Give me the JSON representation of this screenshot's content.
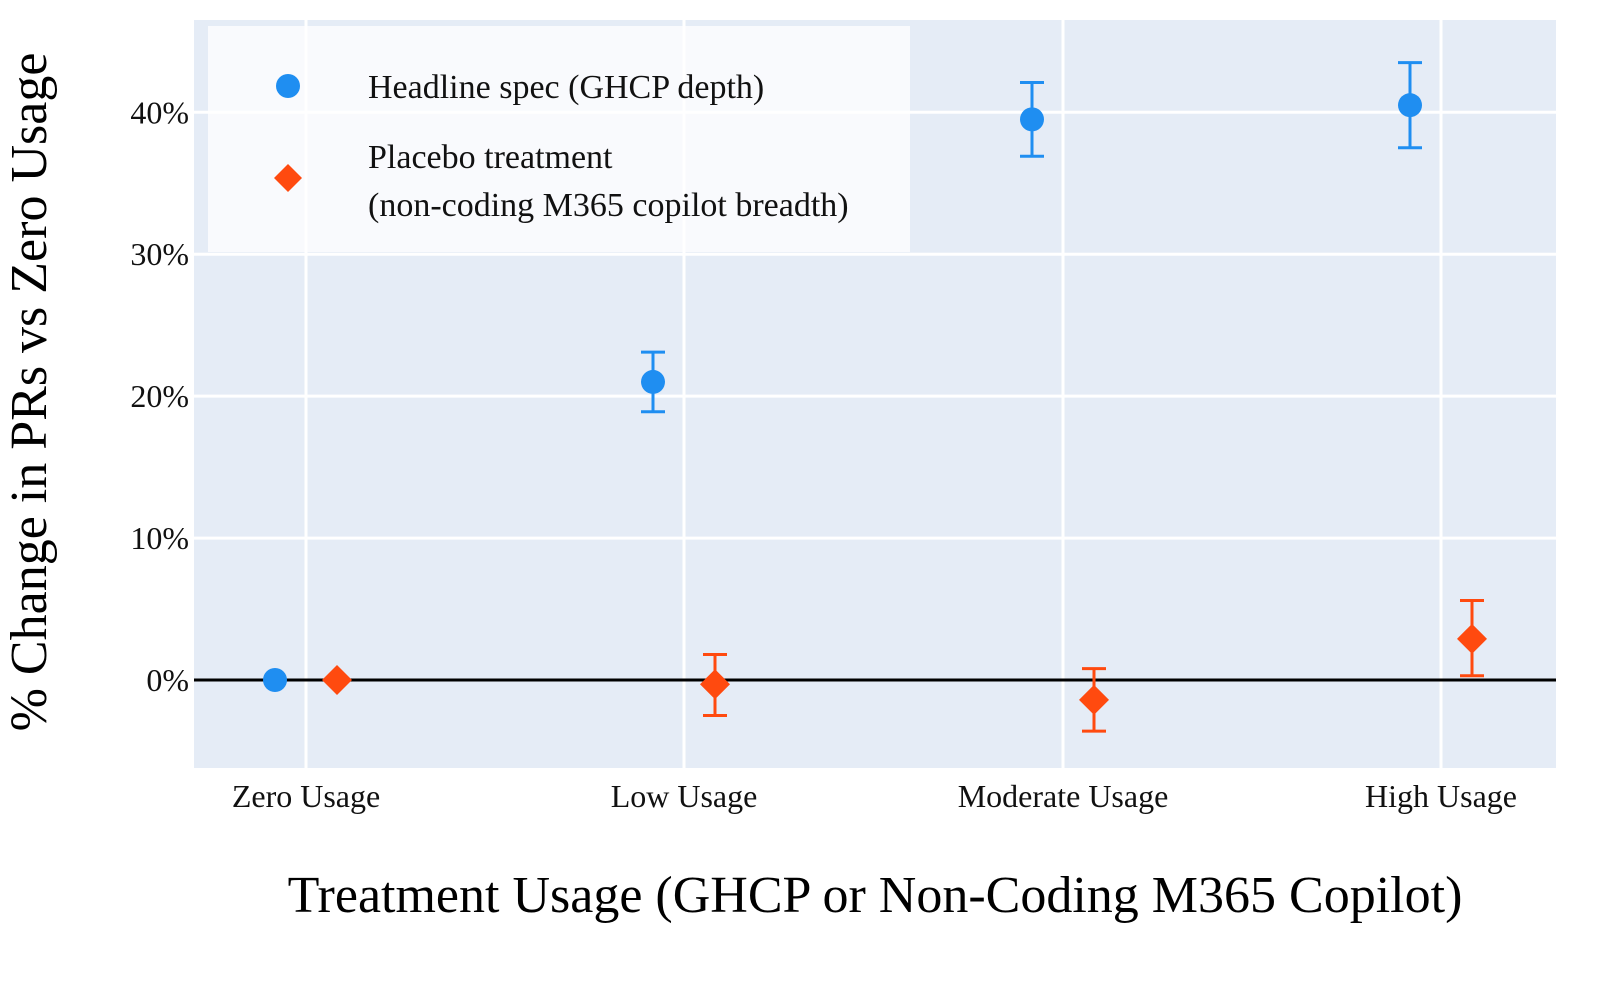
{
  "chart_data": {
    "type": "scatter",
    "xlabel": "Treatment Usage (GHCP or Non-Coding M365 Copilot)",
    "ylabel": "% Change in PRs vs Zero Usage",
    "categories": [
      "Zero Usage",
      "Low Usage",
      "Moderate Usage",
      "High Usage"
    ],
    "ylim": [
      -6.2,
      46.5
    ],
    "yticks": [
      0,
      10,
      20,
      30,
      40
    ],
    "ytick_labels": [
      "0%",
      "10%",
      "20%",
      "30%",
      "40%"
    ],
    "grid": true,
    "reference_line_y": 0,
    "legend_position": "top-left",
    "plot_background": "#e5ecf6",
    "series": [
      {
        "name": "Headline spec (GHCP depth)",
        "marker": "circle",
        "color": "#1f8ef1",
        "values": [
          0,
          21.0,
          39.5,
          40.5
        ],
        "error_low": [
          null,
          18.9,
          36.9,
          37.5
        ],
        "error_high": [
          null,
          23.1,
          42.1,
          43.5
        ]
      },
      {
        "name": "Placebo treatment",
        "name_line2": "(non-coding M365 copilot breadth)",
        "marker": "diamond",
        "color": "#ff4a0f",
        "values": [
          0,
          -0.3,
          -1.4,
          2.9
        ],
        "error_low": [
          null,
          -2.5,
          -3.6,
          0.3
        ],
        "error_high": [
          null,
          1.8,
          0.8,
          5.6
        ]
      }
    ]
  }
}
